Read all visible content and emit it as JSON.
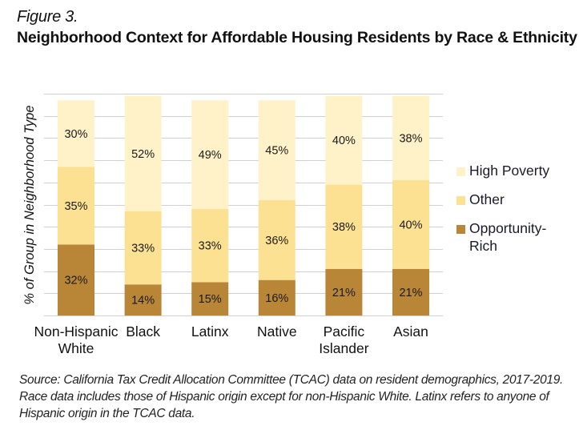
{
  "figure_label": "Figure 3.",
  "title": "Neighborhood Context for Affordable Housing Residents by Race & Ethnicity",
  "source_note": "Source: California Tax Credit Allocation Committee (TCAC) data on resident demographics, 2017-2019. Race data includes those of Hispanic origin except for non-Hispanic White. Latinx refers to anyone of Hispanic origin in the TCAC data.",
  "chart_data": {
    "type": "bar",
    "stacked": true,
    "title": "Neighborhood Context for Affordable Housing Residents by Race & Ethnicity",
    "xlabel": "",
    "ylabel": "% of Group in Neighborhood Type",
    "ylim": [
      0,
      100
    ],
    "grid": true,
    "grid_step": 10,
    "legend_position": "right",
    "categories": [
      "Non-Hispanic White",
      "Black",
      "Latinx",
      "Native",
      "Pacific Islander",
      "Asian"
    ],
    "category_lines": [
      [
        "Non-Hispanic",
        "White"
      ],
      [
        "Black"
      ],
      [
        "Latinx"
      ],
      [
        "Native"
      ],
      [
        "Pacific",
        "Islander"
      ],
      [
        "Asian"
      ]
    ],
    "series": [
      {
        "name": "Opportunity-Rich",
        "color": "#b88636",
        "values": [
          32,
          14,
          15,
          16,
          21,
          21
        ]
      },
      {
        "name": "Other",
        "color": "#fce192",
        "values": [
          35,
          33,
          33,
          36,
          38,
          40
        ]
      },
      {
        "name": "High Poverty",
        "color": "#fff2c8",
        "values": [
          30,
          52,
          49,
          45,
          40,
          38
        ]
      }
    ],
    "data_label_format": "{v}%"
  },
  "legend": [
    {
      "label": "High Poverty",
      "color": "#fff2c8"
    },
    {
      "label": "Other",
      "color": "#fce192"
    },
    {
      "label": "Opportunity-Rich",
      "color": "#b88636"
    }
  ]
}
